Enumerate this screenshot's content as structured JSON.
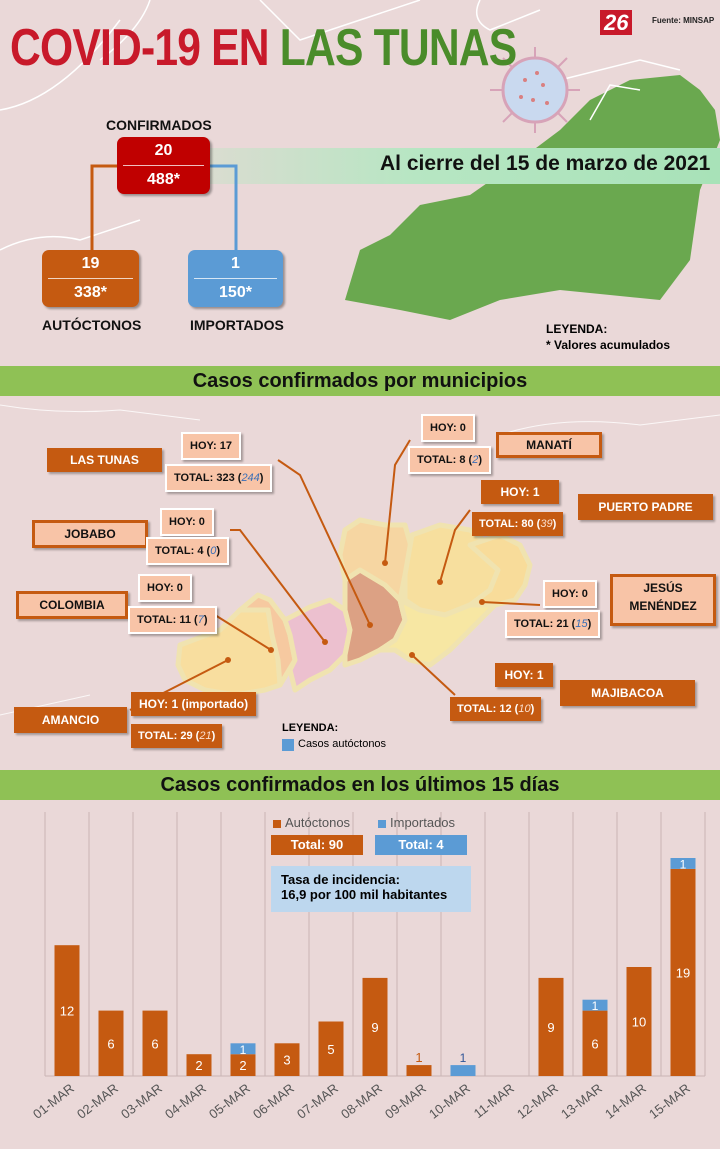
{
  "header": {
    "title_part1": "COVID-19 EN ",
    "title_part2": "LAS TUNAS",
    "logo": "26",
    "source": "Fuente: MINSAP",
    "date_line": "Al cierre del 15 de marzo de 2021"
  },
  "summary": {
    "confirmed": {
      "label": "CONFIRMADOS",
      "today": "20",
      "total": "488*"
    },
    "autochthonous": {
      "label": "AUTÓCTONOS",
      "today": "19",
      "total": "338*"
    },
    "imported": {
      "label": "IMPORTADOS",
      "today": "1",
      "total": "150*"
    },
    "legend_title": "LEYENDA:",
    "legend_text": "* Valores acumulados"
  },
  "municipios": {
    "heading": "Casos confirmados por municipios",
    "legend_title": "LEYENDA:",
    "legend_text": "Casos autóctonos",
    "items": [
      {
        "name": "LAS TUNAS",
        "hoy": "HOY: 17",
        "total": "TOTAL: 323 (",
        "aut": "244",
        "close": ")"
      },
      {
        "name": "MANATÍ",
        "hoy": "HOY: 0",
        "total": "TOTAL: 8 (",
        "aut": "2",
        "close": ")"
      },
      {
        "name": "PUERTO PADRE",
        "hoy": "HOY: 1",
        "total": "TOTAL: 80 (",
        "aut": "39",
        "close": ")"
      },
      {
        "name": "JOBABO",
        "hoy": "HOY: 0",
        "total": "TOTAL: 4 (",
        "aut": "0",
        "close": ")"
      },
      {
        "name": "COLOMBIA",
        "hoy": "HOY: 0",
        "total": "TOTAL: 11 (",
        "aut": "7",
        "close": ")"
      },
      {
        "name": "JESÚS MENÉNDEZ",
        "hoy": "HOY: 0",
        "total": "TOTAL: 21 (",
        "aut": "15",
        "close": ")"
      },
      {
        "name": "MAJIBACOA",
        "hoy": "HOY: 1",
        "total": "TOTAL: 12 (",
        "aut": "10",
        "close": ")"
      },
      {
        "name": "AMANCIO",
        "hoy": "HOY: 1 (importado)",
        "total": "TOTAL: 29 (",
        "aut": "21",
        "close": ")"
      }
    ]
  },
  "last15": {
    "heading": "Casos confirmados en los últimos 15 días",
    "legend_aut": "Autóctonos",
    "legend_imp": "Importados",
    "total_aut": "Total: 90",
    "total_imp": "Total: 4",
    "rate_line1": "Tasa de incidencia:",
    "rate_line2": "16,9 por 100 mil habitantes"
  },
  "colors": {
    "autochthonous": "#c55a11",
    "imported": "#5b9bd5",
    "confirmed": "#c00000",
    "band": "#8fc155"
  },
  "chart_data": {
    "type": "bar",
    "stacked": true,
    "categories": [
      "01-MAR",
      "02-MAR",
      "03-MAR",
      "04-MAR",
      "05-MAR",
      "06-MAR",
      "07-MAR",
      "08-MAR",
      "09-MAR",
      "10-MAR",
      "11-MAR",
      "12-MAR",
      "13-MAR",
      "14-MAR",
      "15-MAR"
    ],
    "series": [
      {
        "name": "Autóctonos",
        "values": [
          12,
          6,
          6,
          2,
          2,
          3,
          5,
          9,
          1,
          0,
          0,
          9,
          6,
          10,
          19
        ]
      },
      {
        "name": "Importados",
        "values": [
          0,
          0,
          0,
          0,
          1,
          0,
          0,
          0,
          0,
          1,
          0,
          0,
          1,
          0,
          1
        ]
      }
    ],
    "ylim": [
      0,
      20
    ],
    "grid": "vertical"
  }
}
